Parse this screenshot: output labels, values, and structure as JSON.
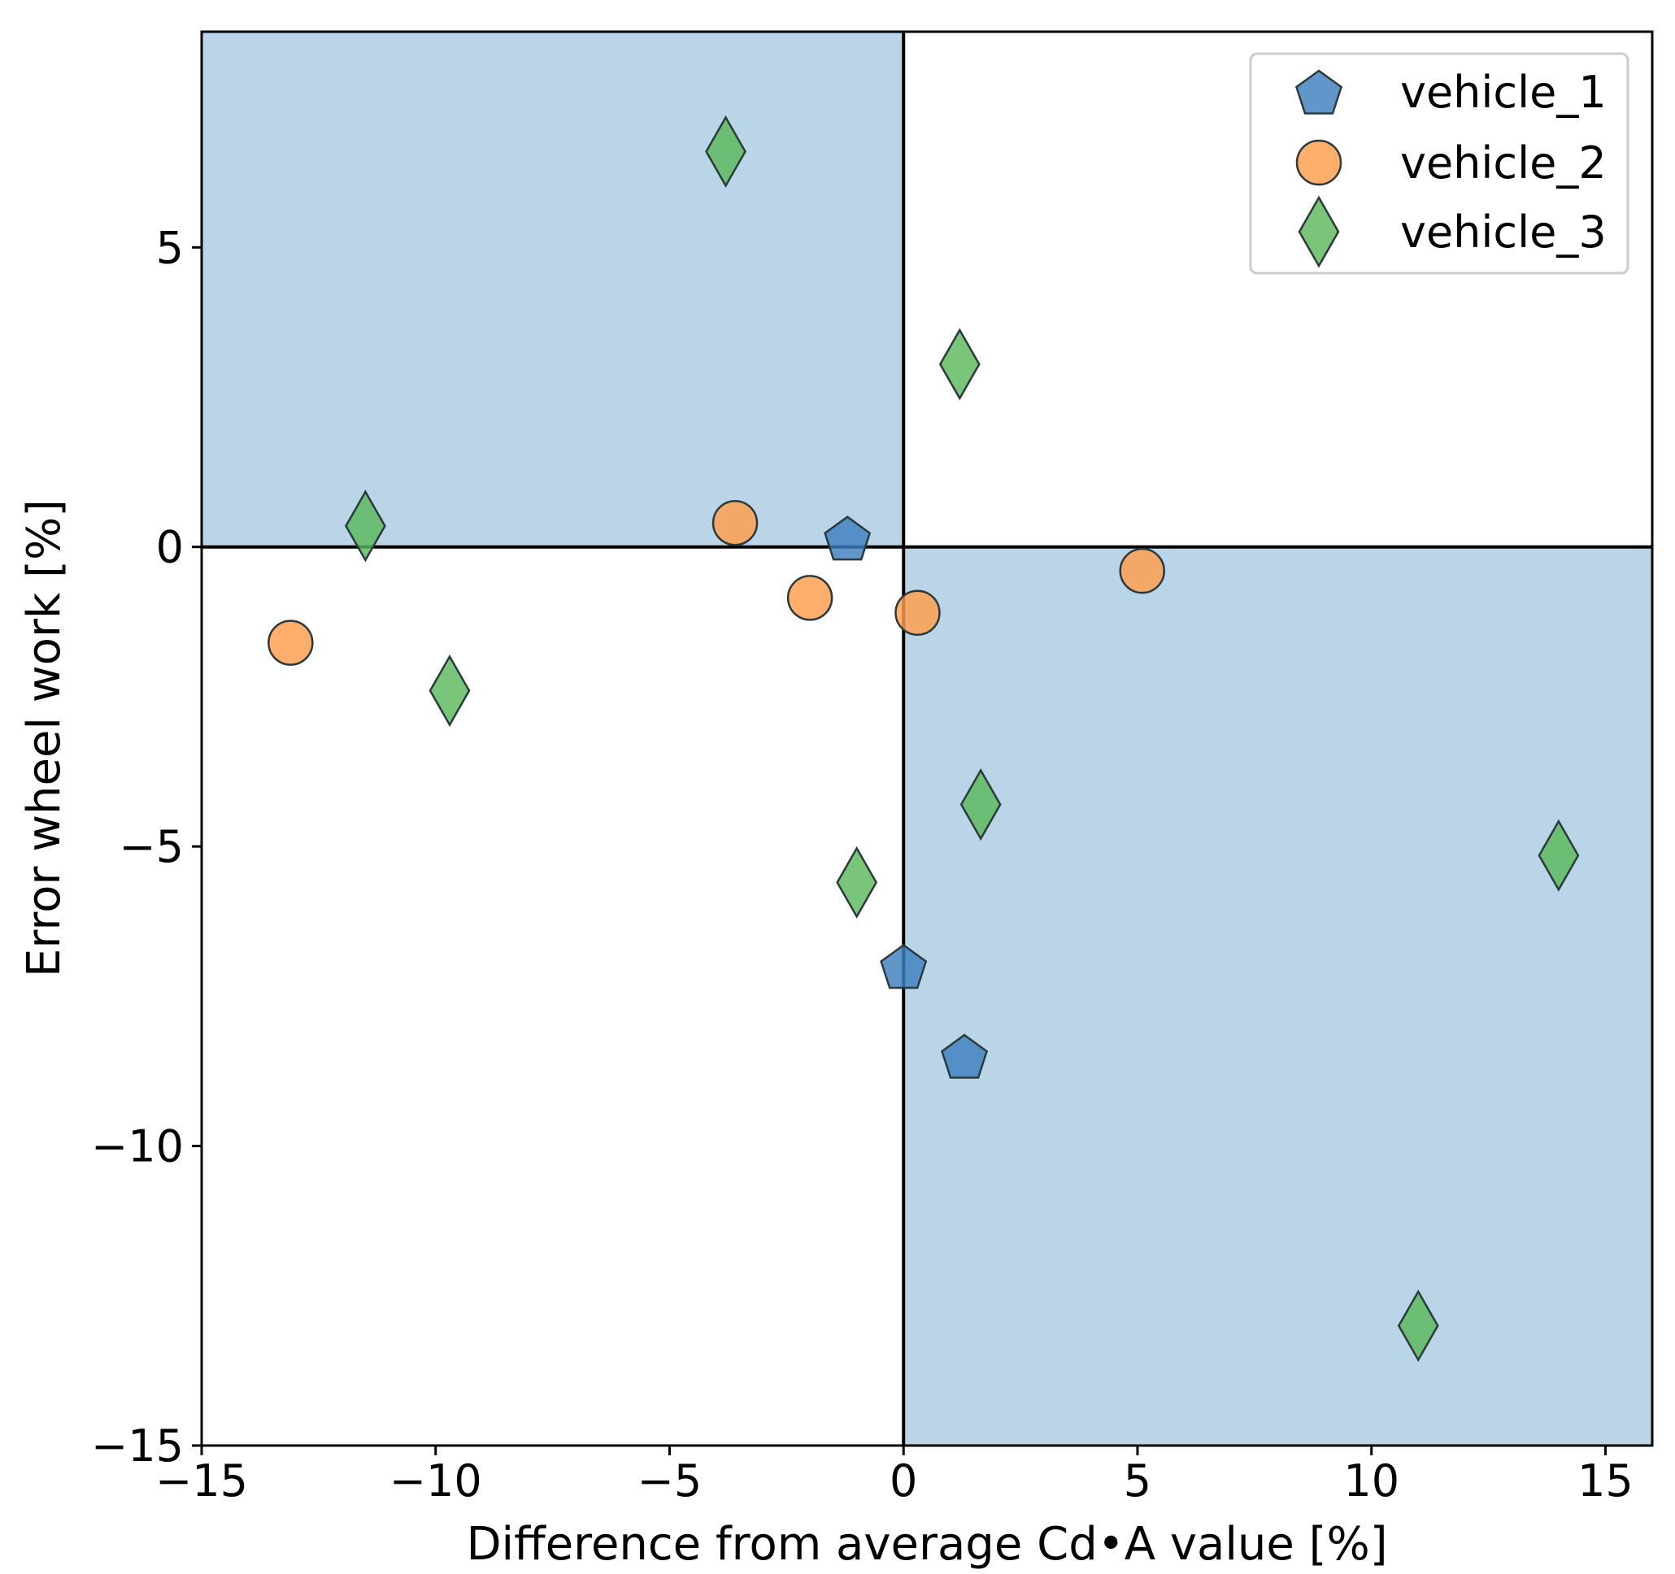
{
  "chart_data": {
    "type": "scatter",
    "title": "",
    "xlabel": "Difference from average Cd•A value [%]",
    "ylabel": "Error wheel work [%]",
    "xlim": [
      -15.0,
      16.0
    ],
    "ylim": [
      -15.0,
      8.6
    ],
    "xticks": [
      -15,
      -10,
      -5,
      0,
      5,
      10,
      15
    ],
    "yticks": [
      -15,
      -10,
      -5,
      0,
      5
    ],
    "xtick_labels": [
      "−15",
      "−10",
      "−5",
      "0",
      "5",
      "10",
      "15"
    ],
    "ytick_labels": [
      "−15",
      "−10",
      "−5",
      "0",
      "5"
    ],
    "shaded_quadrants": [
      {
        "x": [
          -15.0,
          0
        ],
        "y": [
          0,
          8.6
        ]
      },
      {
        "x": [
          0,
          16.0
        ],
        "y": [
          -15.0,
          0
        ]
      }
    ],
    "shade_color": "#bad5e8",
    "legend_position": "top-right",
    "series": [
      {
        "name": "vehicle_1",
        "marker": "pentagon",
        "color": "#3e7fbf",
        "points": [
          [
            -1.2,
            0.15
          ],
          [
            0.0,
            -7.0
          ],
          [
            1.3,
            -8.5
          ]
        ]
      },
      {
        "name": "vehicle_2",
        "marker": "circle",
        "color": "#ff9e4a",
        "points": [
          [
            -13.1,
            -1.6
          ],
          [
            -3.6,
            0.4
          ],
          [
            -2.0,
            -0.85
          ],
          [
            0.3,
            -1.1
          ],
          [
            5.1,
            -0.4
          ]
        ]
      },
      {
        "name": "vehicle_3",
        "marker": "diamond",
        "color": "#5cb85c",
        "points": [
          [
            -3.8,
            6.6
          ],
          [
            1.2,
            3.05
          ],
          [
            -11.5,
            0.35
          ],
          [
            -9.7,
            -2.4
          ],
          [
            1.65,
            -4.3
          ],
          [
            -1.0,
            -5.6
          ],
          [
            14.0,
            -5.15
          ],
          [
            11.0,
            -13.0
          ]
        ]
      }
    ]
  }
}
